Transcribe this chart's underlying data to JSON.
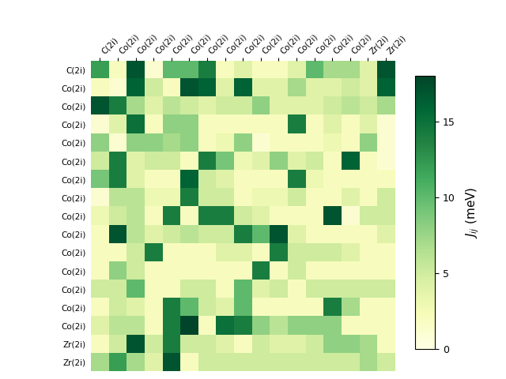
{
  "row_labels": [
    "C(2i)",
    "Co(2i)",
    "Co(2i)",
    "Co(2i)",
    "Co(2i)",
    "Co(2i)",
    "Co(2i)",
    "Co(2i)",
    "Co(2i)",
    "Co(2i)",
    "Co(2i)",
    "Co(2i)",
    "Co(2i)",
    "Co(2i)",
    "Co(2i)",
    "Zr(2i)",
    "Zr(2i)"
  ],
  "col_labels": [
    "C(2i)",
    "Co(2i)",
    "Co(2i)",
    "Co(2i)",
    "Co(2i)",
    "Co(2i)",
    "Co(2i)",
    "Co(2i)",
    "Co(2i)",
    "Co(2i)",
    "Co(2i)",
    "Co(2i)",
    "Co(2i)",
    "Co(2i)",
    "Co(2i)",
    "Zr(2i)",
    "Zr(2i)"
  ],
  "data": [
    [
      12,
      2,
      17,
      1,
      10,
      10,
      14,
      2,
      4,
      2,
      2,
      4,
      10,
      7,
      7,
      4,
      17
    ],
    [
      2,
      1,
      16,
      5,
      2,
      17,
      16,
      4,
      16,
      4,
      4,
      7,
      4,
      4,
      5,
      4,
      16
    ],
    [
      17,
      14,
      7,
      4,
      6,
      5,
      4,
      5,
      5,
      8,
      4,
      4,
      4,
      5,
      6,
      5,
      7
    ],
    [
      1,
      4,
      15,
      2,
      8,
      8,
      2,
      2,
      2,
      2,
      2,
      14,
      2,
      4,
      2,
      4,
      1
    ],
    [
      8,
      1,
      8,
      8,
      7,
      8,
      2,
      3,
      8,
      1,
      2,
      2,
      2,
      3,
      2,
      8,
      1
    ],
    [
      5,
      14,
      4,
      5,
      5,
      2,
      14,
      9,
      3,
      4,
      8,
      4,
      5,
      2,
      16,
      2,
      1
    ],
    [
      9,
      14,
      4,
      2,
      2,
      16,
      5,
      4,
      2,
      2,
      2,
      14,
      3,
      2,
      2,
      2,
      2
    ],
    [
      1,
      6,
      6,
      3,
      3,
      14,
      5,
      5,
      2,
      3,
      3,
      5,
      2,
      2,
      4,
      2,
      5
    ],
    [
      3,
      5,
      6,
      2,
      14,
      2,
      14,
      14,
      5,
      4,
      2,
      2,
      2,
      17,
      1,
      5,
      5
    ],
    [
      2,
      17,
      6,
      4,
      5,
      6,
      5,
      5,
      14,
      10,
      17,
      4,
      2,
      2,
      2,
      2,
      4
    ],
    [
      2,
      2,
      5,
      14,
      2,
      2,
      2,
      4,
      4,
      2,
      14,
      5,
      5,
      5,
      4,
      2,
      2
    ],
    [
      2,
      8,
      5,
      2,
      2,
      2,
      2,
      2,
      2,
      14,
      2,
      5,
      2,
      2,
      2,
      2,
      2
    ],
    [
      5,
      5,
      10,
      2,
      2,
      5,
      5,
      2,
      10,
      4,
      5,
      2,
      5,
      5,
      5,
      5,
      5
    ],
    [
      2,
      5,
      4,
      2,
      14,
      10,
      5,
      4,
      10,
      2,
      2,
      2,
      2,
      14,
      7,
      2,
      2
    ],
    [
      4,
      6,
      6,
      2,
      14,
      18,
      2,
      15,
      14,
      8,
      6,
      8,
      8,
      8,
      2,
      2,
      2
    ],
    [
      2,
      5,
      17,
      5,
      14,
      5,
      5,
      4,
      2,
      5,
      4,
      4,
      5,
      8,
      8,
      7,
      2
    ],
    [
      7,
      12,
      7,
      4,
      17,
      2,
      5,
      5,
      5,
      5,
      5,
      5,
      5,
      5,
      5,
      7,
      5
    ]
  ],
  "vmin": 0,
  "vmax": 18,
  "cmap": "YlGn",
  "colorbar_label": "$J_{ij}$ (meV)",
  "colorbar_ticks": [
    0,
    5,
    10,
    15
  ],
  "figsize": [
    6.4,
    4.8
  ],
  "dpi": 100
}
